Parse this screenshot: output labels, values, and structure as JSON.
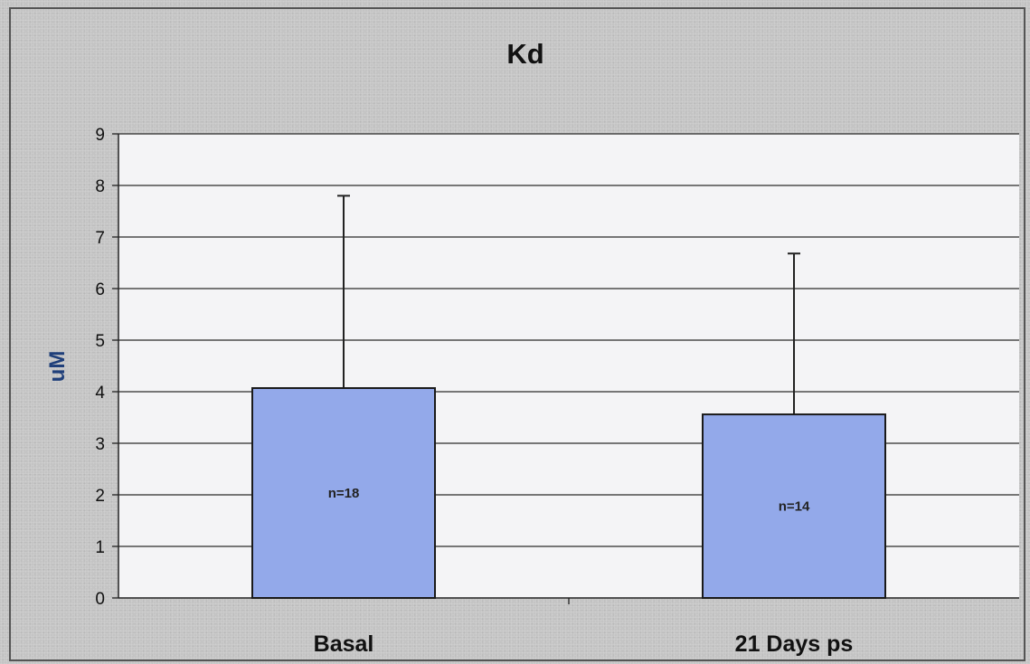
{
  "chart_data": {
    "type": "bar",
    "title": "Kd",
    "xlabel": "",
    "ylabel": "uM",
    "categories": [
      "Basal",
      "21 Days ps"
    ],
    "values": [
      4.07,
      3.56
    ],
    "error_upper": [
      7.8,
      6.68
    ],
    "data_labels": [
      "n=18",
      "n=14"
    ],
    "ylim": [
      0,
      9
    ],
    "yticks": [
      0,
      1,
      2,
      3,
      4,
      5,
      6,
      7,
      8,
      9
    ],
    "grid": true,
    "legend": "none",
    "colors": {
      "bar_fill": "#93a9ea",
      "bar_stroke": "#1a1a1a",
      "plot_background": "#f4f4f6",
      "gridline": "#2a2a2a",
      "ylabel": "#1f3f7a"
    }
  }
}
